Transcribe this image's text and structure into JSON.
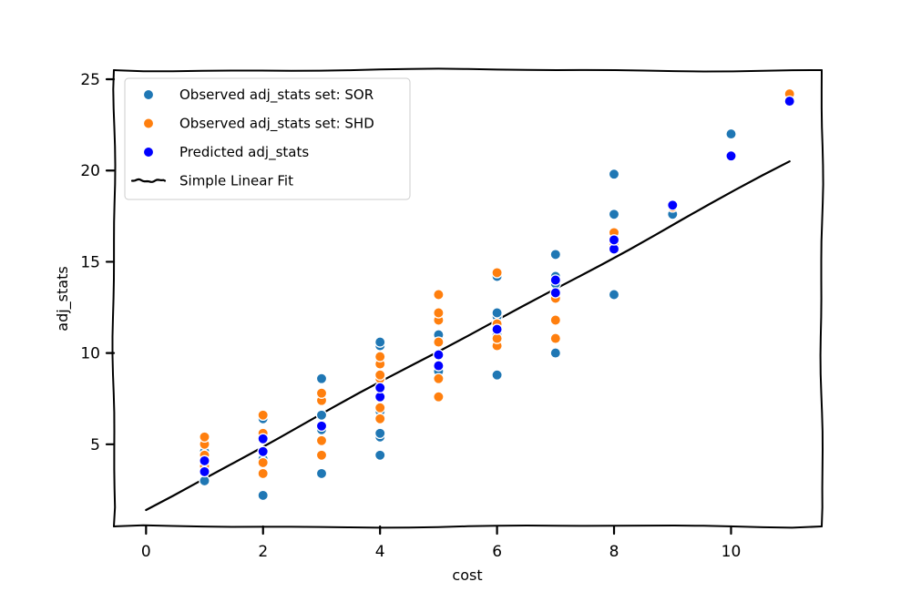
{
  "chart_data": {
    "type": "scatter",
    "title": "",
    "xlabel": "cost",
    "ylabel": "adj_stats",
    "xlim": [
      -0.55,
      11.55
    ],
    "ylim": [
      0.5,
      25.5
    ],
    "xticks": [
      "0",
      "2",
      "4",
      "6",
      "8",
      "10"
    ],
    "yticks": [
      "5",
      "10",
      "15",
      "20",
      "25"
    ],
    "grid": false,
    "legend_position": "top-left",
    "series": [
      {
        "name": "Observed adj_stats set: SOR",
        "color": "#1f77b4",
        "marker": "circle",
        "points": [
          [
            1,
            3.0
          ],
          [
            1,
            3.6
          ],
          [
            1,
            4.0
          ],
          [
            1,
            4.6
          ],
          [
            2,
            2.2
          ],
          [
            2,
            4.2
          ],
          [
            2,
            4.6
          ],
          [
            2,
            5.4
          ],
          [
            2,
            6.4
          ],
          [
            3,
            3.4
          ],
          [
            3,
            5.8
          ],
          [
            3,
            6.6
          ],
          [
            3,
            7.6
          ],
          [
            3,
            8.6
          ],
          [
            4,
            4.4
          ],
          [
            4,
            5.4
          ],
          [
            4,
            5.6
          ],
          [
            4,
            6.8
          ],
          [
            4,
            7.6
          ],
          [
            4,
            9.6
          ],
          [
            4,
            10.4
          ],
          [
            4,
            10.6
          ],
          [
            5,
            9.0
          ],
          [
            5,
            10.8
          ],
          [
            5,
            11.0
          ],
          [
            6,
            8.8
          ],
          [
            6,
            11.0
          ],
          [
            6,
            12.0
          ],
          [
            6,
            12.2
          ],
          [
            6,
            14.2
          ],
          [
            7,
            10.0
          ],
          [
            7,
            13.8
          ],
          [
            7,
            14.2
          ],
          [
            7,
            15.4
          ],
          [
            8,
            13.2
          ],
          [
            8,
            16.4
          ],
          [
            8,
            17.6
          ],
          [
            8,
            19.8
          ],
          [
            9,
            17.6
          ],
          [
            10,
            22.0
          ]
        ]
      },
      {
        "name": "Observed adj_stats set: SHD",
        "color": "#ff7f0e",
        "marker": "circle",
        "points": [
          [
            1,
            3.8
          ],
          [
            1,
            4.4
          ],
          [
            1,
            5.0
          ],
          [
            1,
            5.4
          ],
          [
            2,
            3.4
          ],
          [
            2,
            4.0
          ],
          [
            2,
            5.6
          ],
          [
            2,
            6.6
          ],
          [
            3,
            4.4
          ],
          [
            3,
            5.2
          ],
          [
            3,
            7.4
          ],
          [
            3,
            7.8
          ],
          [
            4,
            6.4
          ],
          [
            4,
            7.0
          ],
          [
            4,
            8.0
          ],
          [
            4,
            8.6
          ],
          [
            4,
            8.8
          ],
          [
            4,
            9.4
          ],
          [
            4,
            9.8
          ],
          [
            5,
            7.6
          ],
          [
            5,
            8.6
          ],
          [
            5,
            10.6
          ],
          [
            5,
            11.8
          ],
          [
            5,
            12.2
          ],
          [
            5,
            13.2
          ],
          [
            6,
            10.4
          ],
          [
            6,
            10.8
          ],
          [
            6,
            11.6
          ],
          [
            6,
            14.4
          ],
          [
            7,
            10.8
          ],
          [
            7,
            11.8
          ],
          [
            7,
            13.0
          ],
          [
            8,
            16.0
          ],
          [
            8,
            16.6
          ],
          [
            9,
            18.0
          ],
          [
            11,
            24.2
          ]
        ]
      },
      {
        "name": "Predicted adj_stats",
        "color": "#0000ff",
        "marker": "circle",
        "points": [
          [
            1,
            3.5
          ],
          [
            1,
            4.1
          ],
          [
            2,
            4.6
          ],
          [
            2,
            5.3
          ],
          [
            3,
            6.0
          ],
          [
            4,
            7.6
          ],
          [
            4,
            8.1
          ],
          [
            5,
            9.3
          ],
          [
            5,
            9.9
          ],
          [
            6,
            11.3
          ],
          [
            7,
            13.3
          ],
          [
            7,
            14.0
          ],
          [
            8,
            15.7
          ],
          [
            8,
            16.2
          ],
          [
            9,
            18.1
          ],
          [
            10,
            20.8
          ],
          [
            11,
            23.8
          ]
        ]
      },
      {
        "name": "Simple Linear Fit",
        "color": "#000000",
        "marker": "line",
        "points": [
          [
            0,
            1.4
          ],
          [
            11,
            20.5
          ]
        ]
      }
    ]
  }
}
